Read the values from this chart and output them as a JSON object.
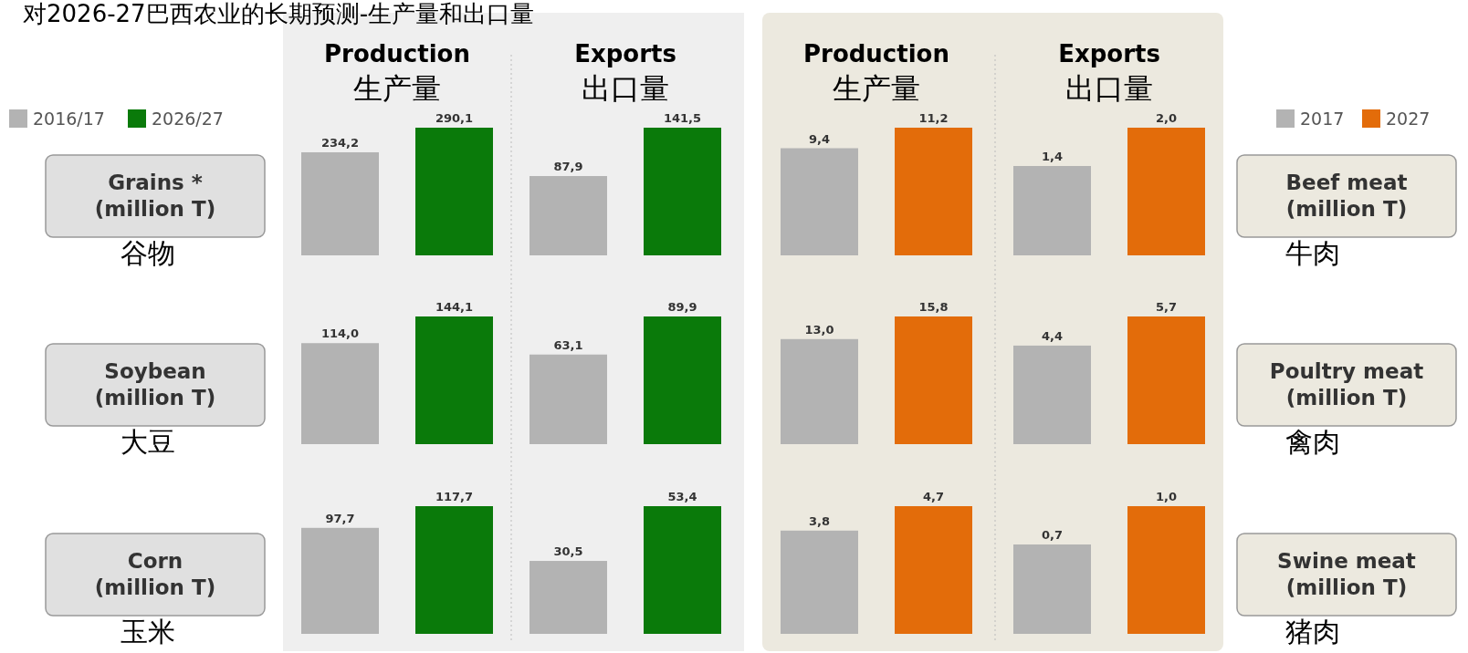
{
  "chart_data": [
    {
      "type": "bar",
      "title": "对2026-27巴西农业的长期预测-生产量和出口量",
      "subtitle": "Production\n生产量",
      "ylabel": "Grains *\n(million T)",
      "annotations": [
        "谷物"
      ],
      "categories": [
        null
      ],
      "legend": "top left",
      "series": [
        {
          "name": "2016/17",
          "color": "#b3b3b3",
          "values": [
            234.2
          ],
          "value_labels": [
            "234,2"
          ]
        },
        {
          "name": "2026/27",
          "color": "#0a7a0a",
          "values": [
            290.1
          ],
          "value_labels": [
            "290,1"
          ]
        }
      ]
    },
    {
      "type": "bar",
      "subtitle": "Exports\n出口量",
      "categories": [
        null
      ],
      "series": [
        {
          "color": "#b3b3b3",
          "values": [
            87.9
          ],
          "value_labels": [
            "87,9"
          ]
        },
        {
          "color": "#0a7a0a",
          "values": [
            141.5
          ],
          "value_labels": [
            "141,5"
          ]
        }
      ]
    },
    {
      "type": "bar",
      "ylabel": "Soybean\n(million T)",
      "annotations": [
        "大豆"
      ],
      "categories": [
        null
      ],
      "series": [
        {
          "color": "#b3b3b3",
          "values": [
            114.0
          ],
          "value_labels": [
            "114,0"
          ]
        },
        {
          "color": "#0a7a0a",
          "values": [
            144.1
          ],
          "value_labels": [
            "144,1"
          ]
        }
      ]
    },
    {
      "type": "bar",
      "categories": [
        null
      ],
      "series": [
        {
          "color": "#b3b3b3",
          "values": [
            63.1
          ],
          "value_labels": [
            "63,1"
          ]
        },
        {
          "color": "#0a7a0a",
          "values": [
            89.9
          ],
          "value_labels": [
            "89,9"
          ]
        }
      ]
    },
    {
      "type": "bar",
      "ylabel": "Corn\n(million T)",
      "annotations": [
        "玉米"
      ],
      "categories": [
        null
      ],
      "series": [
        {
          "color": "#b3b3b3",
          "values": [
            97.7
          ],
          "value_labels": [
            "97,7"
          ]
        },
        {
          "color": "#0a7a0a",
          "values": [
            117.7
          ],
          "value_labels": [
            "117,7"
          ]
        }
      ]
    },
    {
      "type": "bar",
      "categories": [
        null
      ],
      "series": [
        {
          "color": "#b3b3b3",
          "values": [
            30.5
          ],
          "value_labels": [
            "30,5"
          ]
        },
        {
          "color": "#0a7a0a",
          "values": [
            53.4
          ],
          "value_labels": [
            "53,4"
          ]
        }
      ]
    },
    {
      "type": "bar",
      "subtitle": "Production\n生产量",
      "categories": [
        null
      ],
      "series": [
        {
          "color": "#b3b3b3",
          "values": [
            9.4
          ],
          "value_labels": [
            "9,4"
          ]
        },
        {
          "color": "#e36c0a",
          "values": [
            11.2
          ],
          "value_labels": [
            "11,2"
          ]
        }
      ]
    },
    {
      "type": "bar",
      "subtitle": "Exports\n出口量",
      "ylabel": "Beef meat\n(million T)",
      "annotations": [
        "牛肉"
      ],
      "categories": [
        null
      ],
      "legend": "top right",
      "series": [
        {
          "name": "2017",
          "color": "#b3b3b3",
          "values": [
            1.4
          ],
          "value_labels": [
            "1,4"
          ]
        },
        {
          "name": "2027",
          "color": "#e36c0a",
          "values": [
            2.0
          ],
          "value_labels": [
            "2,0"
          ]
        }
      ]
    },
    {
      "type": "bar",
      "categories": [
        null
      ],
      "series": [
        {
          "color": "#b3b3b3",
          "values": [
            13.0
          ],
          "value_labels": [
            "13,0"
          ]
        },
        {
          "color": "#e36c0a",
          "values": [
            15.8
          ],
          "value_labels": [
            "15,8"
          ]
        }
      ]
    },
    {
      "type": "bar",
      "ylabel": "Poultry meat\n(million T)",
      "annotations": [
        "禽肉"
      ],
      "categories": [
        null
      ],
      "series": [
        {
          "color": "#b3b3b3",
          "values": [
            4.4
          ],
          "value_labels": [
            "4,4"
          ]
        },
        {
          "color": "#e36c0a",
          "values": [
            5.7
          ],
          "value_labels": [
            "5,7"
          ]
        }
      ]
    },
    {
      "type": "bar",
      "categories": [
        null
      ],
      "series": [
        {
          "color": "#b3b3b3",
          "values": [
            3.8
          ],
          "value_labels": [
            "3,8"
          ]
        },
        {
          "color": "#e36c0a",
          "values": [
            4.7
          ],
          "value_labels": [
            "4,7"
          ]
        }
      ]
    },
    {
      "type": "bar",
      "ylabel": "Swine meat\n(million T)",
      "annotations": [
        "猪肉"
      ],
      "categories": [
        null
      ],
      "series": [
        {
          "color": "#b3b3b3",
          "values": [
            0.7
          ],
          "value_labels": [
            "0,7"
          ]
        },
        {
          "color": "#e36c0a",
          "values": [
            1.0
          ],
          "value_labels": [
            "1,0"
          ]
        }
      ]
    }
  ]
}
